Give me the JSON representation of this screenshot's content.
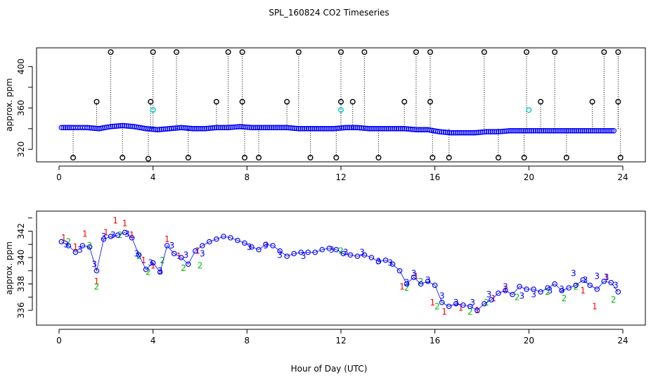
{
  "chart_data": {
    "type": "scatter",
    "title": "SPL_160824  CO2 Timeseries",
    "xlabel": "Hour of Day (UTC)",
    "xlim": [
      0,
      24
    ],
    "xticks": [
      0,
      4,
      8,
      12,
      16,
      20,
      24
    ],
    "panels": [
      {
        "name": "top",
        "ylabel": "approx. ppm",
        "ylim": [
          312,
          414
        ],
        "yticks": [
          320,
          360,
          400
        ],
        "series": [
          {
            "name": "co2-series",
            "color": "#0000ff",
            "marker": "circle",
            "x": [
              0.1,
              0.6,
              1.2,
              1.7,
              2.2,
              2.7,
              3.2,
              3.7,
              4.2,
              4.7,
              5.2,
              5.7,
              6.2,
              6.7,
              7.2,
              7.7,
              8.2,
              8.7,
              9.2,
              9.7,
              10.2,
              10.7,
              11.2,
              11.7,
              12.2,
              12.7,
              13.2,
              13.7,
              14.2,
              14.7,
              15.2,
              15.7,
              16.2,
              16.7,
              17.2,
              17.7,
              18.2,
              18.7,
              19.2,
              19.7,
              20.2,
              20.7,
              21.2,
              21.7,
              22.2,
              22.7,
              23.2,
              23.7
            ],
            "y": [
              341,
              341,
              341,
              340,
              342,
              343,
              342,
              340,
              339,
              340,
              341,
              340,
              340,
              341,
              341,
              342,
              341,
              341,
              341,
              341,
              340,
              340,
              340,
              340,
              341,
              341,
              340,
              340,
              340,
              340,
              339,
              339,
              337,
              336,
              336,
              336,
              337,
              337,
              338,
              338,
              338,
              338,
              338,
              338,
              338,
              338,
              338,
              338
            ]
          },
          {
            "name": "spikes",
            "color": "#000000",
            "marker": "circle-open",
            "x": [
              1.6,
              2.2,
              3.9,
              4.0,
              5.0,
              6.7,
              7.2,
              7.8,
              7.8,
              9.7,
              10.2,
              12.0,
              12.0,
              12.5,
              13.0,
              14.7,
              15.2,
              15.8,
              15.8,
              18.1,
              19.9,
              20.5,
              21.1,
              22.7,
              23.2,
              23.8,
              23.8
            ],
            "y": [
              366,
              414,
              366,
              414,
              414,
              366,
              414,
              414,
              366,
              366,
              414,
              414,
              366,
              366,
              414,
              366,
              414,
              414,
              366,
              414,
              414,
              366,
              414,
              366,
              414,
              414,
              366
            ]
          },
          {
            "name": "dips",
            "color": "#000000",
            "marker": "circle-open",
            "x": [
              0.6,
              2.7,
              3.8,
              5.5,
              7.9,
              8.5,
              10.7,
              11.8,
              13.6,
              15.9,
              16.6,
              18.7,
              19.8,
              21.6,
              23.9
            ],
            "y": [
              312,
              312,
              311,
              312,
              312,
              312,
              312,
              312,
              312,
              312,
              312,
              312,
              312,
              312,
              312
            ]
          },
          {
            "name": "cal-points",
            "color": "#00cccc",
            "marker": "circle-open",
            "x": [
              4.0,
              12.0,
              20.0
            ],
            "y": [
              358,
              358,
              358
            ]
          }
        ]
      },
      {
        "name": "bottom",
        "ylabel": "approx. ppm",
        "ylim": [
          335.2,
          343.2
        ],
        "yticks": [
          336,
          338,
          340,
          342
        ],
        "series": [
          {
            "name": "flag-1",
            "color": "#ff0000",
            "marker": "1",
            "x": [
              0.2,
              0.7,
              1.1,
              1.6,
              2.0,
              2.4,
              2.8,
              3.1,
              3.6,
              4.0,
              4.6,
              5.1,
              5.9,
              14.6,
              15.2,
              15.9,
              16.4,
              17.1,
              17.8,
              18.5,
              19.0,
              22.3,
              22.8,
              23.3
            ],
            "y": [
              341.5,
              340.8,
              341.8,
              338.2,
              341.9,
              342.8,
              342.6,
              341.7,
              339.8,
              339.4,
              341.4,
              340.1,
              340.5,
              337.8,
              338.6,
              336.6,
              335.9,
              336.2,
              336.0,
              336.9,
              337.6,
              337.5,
              336.3,
              338.5
            ]
          },
          {
            "name": "flag-2",
            "color": "#00bb00",
            "marker": "2",
            "x": [
              0.4,
              1.3,
              1.6,
              2.6,
              3.4,
              3.8,
              4.4,
              5.3,
              6.0,
              12.0,
              14.8,
              15.4,
              16.1,
              17.5,
              18.2,
              19.5,
              20.8,
              21.5,
              22.0,
              23.6
            ],
            "y": [
              341.2,
              340.9,
              337.8,
              341.7,
              340.1,
              338.9,
              339.8,
              339.2,
              339.4,
              340.5,
              337.7,
              338.2,
              336.3,
              335.9,
              336.6,
              337.0,
              337.4,
              336.9,
              337.8,
              336.8
            ]
          },
          {
            "name": "flag-3",
            "color": "#0000ff",
            "marker": "3",
            "x": [
              0.3,
              0.9,
              1.5,
              1.9,
              2.3,
              2.9,
              3.3,
              3.9,
              4.3,
              4.8,
              5.4,
              6.1,
              8.1,
              8.8,
              9.4,
              10.4,
              11.6,
              12.2,
              12.9,
              13.6,
              14.1,
              14.8,
              15.1,
              15.7,
              16.3,
              16.9,
              17.6,
              18.3,
              19.0,
              19.7,
              20.2,
              20.9,
              21.4,
              21.9,
              22.4,
              22.9,
              23.3,
              23.7
            ],
            "y": [
              341.0,
              340.6,
              339.5,
              341.6,
              341.7,
              341.8,
              340.3,
              339.6,
              339.0,
              340.9,
              340.2,
              340.3,
              340.8,
              340.9,
              340.2,
              340.1,
              340.6,
              340.4,
              340.4,
              339.7,
              339.6,
              338.1,
              338.8,
              338.3,
              337.1,
              336.6,
              336.6,
              337.2,
              337.8,
              337.1,
              337.2,
              337.5,
              337.6,
              338.8,
              338.3,
              338.6,
              338.5,
              337.9
            ]
          },
          {
            "name": "co2-series",
            "color": "#0000ff",
            "marker": "circle",
            "x": [
              0.1,
              0.4,
              0.7,
              1.0,
              1.3,
              1.6,
              1.9,
              2.2,
              2.5,
              2.8,
              3.1,
              3.4,
              3.7,
              4.0,
              4.3,
              4.6,
              4.9,
              5.2,
              5.5,
              5.8,
              6.1,
              6.4,
              6.7,
              7.0,
              7.3,
              7.6,
              7.9,
              8.2,
              8.5,
              8.8,
              9.1,
              9.4,
              9.7,
              10.0,
              10.3,
              10.6,
              10.9,
              11.2,
              11.5,
              11.8,
              12.1,
              12.4,
              12.7,
              13.0,
              13.3,
              13.6,
              13.9,
              14.2,
              14.5,
              14.8,
              15.1,
              15.4,
              15.7,
              16.0,
              16.3,
              16.6,
              16.9,
              17.2,
              17.5,
              17.8,
              18.1,
              18.4,
              18.7,
              19.0,
              19.3,
              19.6,
              19.9,
              20.2,
              20.5,
              20.8,
              21.1,
              21.4,
              21.7,
              22.0,
              22.3,
              22.6,
              22.9,
              23.2,
              23.5,
              23.8
            ],
            "y": [
              341.2,
              340.9,
              340.4,
              340.9,
              340.8,
              339.0,
              341.4,
              341.6,
              341.7,
              341.9,
              341.5,
              340.2,
              339.1,
              339.6,
              338.9,
              340.9,
              340.3,
              340.0,
              339.5,
              340.5,
              340.9,
              341.2,
              341.4,
              341.6,
              341.5,
              341.3,
              341.1,
              340.8,
              340.6,
              341.0,
              340.9,
              340.5,
              340.1,
              340.3,
              340.4,
              340.4,
              340.4,
              340.6,
              340.7,
              340.6,
              340.3,
              340.2,
              340.1,
              340.2,
              340.0,
              339.7,
              339.8,
              339.5,
              339.0,
              338.0,
              338.5,
              338.0,
              338.2,
              337.9,
              336.6,
              336.3,
              336.5,
              336.4,
              336.3,
              336.0,
              336.5,
              336.8,
              337.3,
              337.5,
              337.2,
              337.8,
              337.6,
              337.6,
              337.4,
              337.7,
              338.0,
              337.5,
              337.7,
              337.9,
              338.3,
              337.9,
              337.6,
              338.2,
              338.1,
              337.4
            ]
          }
        ]
      }
    ]
  }
}
